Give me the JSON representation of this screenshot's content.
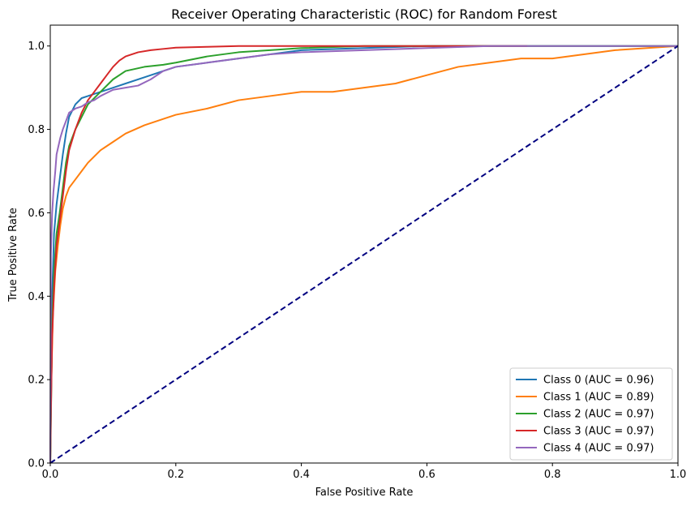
{
  "chart_data": {
    "type": "line",
    "title": "Receiver Operating Characteristic (ROC) for Random Forest",
    "xlabel": "False Positive Rate",
    "ylabel": "True Positive Rate",
    "xlim": [
      0.0,
      1.0
    ],
    "ylim": [
      0.0,
      1.05
    ],
    "xticks": [
      "0.0",
      "0.2",
      "0.4",
      "0.6",
      "0.8",
      "1.0"
    ],
    "yticks": [
      "0.0",
      "0.2",
      "0.4",
      "0.6",
      "0.8",
      "1.0"
    ],
    "grid": false,
    "legend_position": "lower-right",
    "series": [
      {
        "name": "Class 0 (AUC = 0.96)",
        "color": "#1f77b4",
        "x": [
          0.0,
          0.001,
          0.003,
          0.006,
          0.01,
          0.015,
          0.02,
          0.025,
          0.03,
          0.04,
          0.05,
          0.06,
          0.08,
          0.1,
          0.12,
          0.15,
          0.18,
          0.2,
          0.25,
          0.3,
          0.35,
          0.4,
          0.5,
          0.6,
          0.7,
          0.8,
          0.9,
          1.0
        ],
        "y": [
          0.0,
          0.15,
          0.4,
          0.55,
          0.62,
          0.68,
          0.74,
          0.79,
          0.83,
          0.86,
          0.875,
          0.88,
          0.89,
          0.9,
          0.91,
          0.925,
          0.94,
          0.95,
          0.96,
          0.97,
          0.98,
          0.99,
          0.995,
          1.0,
          1.0,
          1.0,
          1.0,
          1.0
        ]
      },
      {
        "name": "Class 1 (AUC = 0.89)",
        "color": "#ff7f0e",
        "x": [
          0.0,
          0.001,
          0.004,
          0.008,
          0.012,
          0.016,
          0.02,
          0.025,
          0.03,
          0.04,
          0.05,
          0.06,
          0.08,
          0.1,
          0.12,
          0.15,
          0.18,
          0.2,
          0.25,
          0.3,
          0.35,
          0.4,
          0.45,
          0.5,
          0.55,
          0.6,
          0.65,
          0.7,
          0.75,
          0.8,
          0.85,
          0.9,
          1.0
        ],
        "y": [
          0.0,
          0.15,
          0.35,
          0.46,
          0.52,
          0.57,
          0.61,
          0.64,
          0.66,
          0.68,
          0.7,
          0.72,
          0.75,
          0.77,
          0.79,
          0.81,
          0.825,
          0.835,
          0.85,
          0.87,
          0.88,
          0.89,
          0.89,
          0.9,
          0.91,
          0.93,
          0.95,
          0.96,
          0.97,
          0.97,
          0.98,
          0.99,
          1.0
        ]
      },
      {
        "name": "Class 2 (AUC = 0.97)",
        "color": "#2ca02c",
        "x": [
          0.0,
          0.001,
          0.003,
          0.006,
          0.01,
          0.015,
          0.02,
          0.025,
          0.03,
          0.04,
          0.05,
          0.06,
          0.08,
          0.1,
          0.12,
          0.15,
          0.18,
          0.2,
          0.25,
          0.3,
          0.35,
          0.4,
          0.5,
          0.6,
          0.7,
          0.8,
          0.9,
          1.0
        ],
        "y": [
          0.0,
          0.1,
          0.33,
          0.46,
          0.55,
          0.6,
          0.66,
          0.72,
          0.76,
          0.8,
          0.83,
          0.86,
          0.89,
          0.92,
          0.94,
          0.95,
          0.955,
          0.96,
          0.975,
          0.985,
          0.99,
          0.995,
          1.0,
          1.0,
          1.0,
          1.0,
          1.0,
          1.0
        ]
      },
      {
        "name": "Class 3 (AUC = 0.97)",
        "color": "#d62728",
        "x": [
          0.0,
          0.001,
          0.003,
          0.006,
          0.01,
          0.015,
          0.02,
          0.025,
          0.03,
          0.04,
          0.05,
          0.06,
          0.07,
          0.08,
          0.09,
          0.1,
          0.11,
          0.12,
          0.14,
          0.16,
          0.18,
          0.2,
          0.25,
          0.3,
          0.35,
          0.4,
          0.5,
          0.6,
          0.7,
          0.76
        ],
        "y": [
          0.0,
          0.12,
          0.3,
          0.42,
          0.52,
          0.58,
          0.64,
          0.7,
          0.75,
          0.8,
          0.84,
          0.87,
          0.89,
          0.91,
          0.93,
          0.95,
          0.965,
          0.975,
          0.985,
          0.99,
          0.993,
          0.996,
          0.998,
          1.0,
          1.0,
          1.0,
          1.0,
          1.0,
          1.0,
          1.0
        ]
      },
      {
        "name": "Class 4 (AUC = 0.97)",
        "color": "#9467bd",
        "x": [
          0.0,
          0.001,
          0.003,
          0.005,
          0.008,
          0.01,
          0.013,
          0.016,
          0.02,
          0.025,
          0.03,
          0.035,
          0.04,
          0.05,
          0.06,
          0.07,
          0.08,
          0.1,
          0.12,
          0.14,
          0.16,
          0.18,
          0.2,
          0.25,
          0.3,
          0.35,
          0.4,
          0.5,
          0.6,
          0.7,
          0.8,
          0.9,
          1.0
        ],
        "y": [
          0.0,
          0.5,
          0.6,
          0.65,
          0.7,
          0.74,
          0.76,
          0.78,
          0.8,
          0.82,
          0.84,
          0.845,
          0.85,
          0.855,
          0.865,
          0.87,
          0.88,
          0.895,
          0.9,
          0.905,
          0.92,
          0.94,
          0.95,
          0.96,
          0.97,
          0.98,
          0.985,
          0.99,
          0.995,
          1.0,
          1.0,
          1.0,
          1.0
        ]
      },
      {
        "name": "",
        "color": "#000080",
        "dashed": true,
        "legend": false,
        "x": [
          0.0,
          1.0
        ],
        "y": [
          0.0,
          1.0
        ]
      }
    ]
  }
}
